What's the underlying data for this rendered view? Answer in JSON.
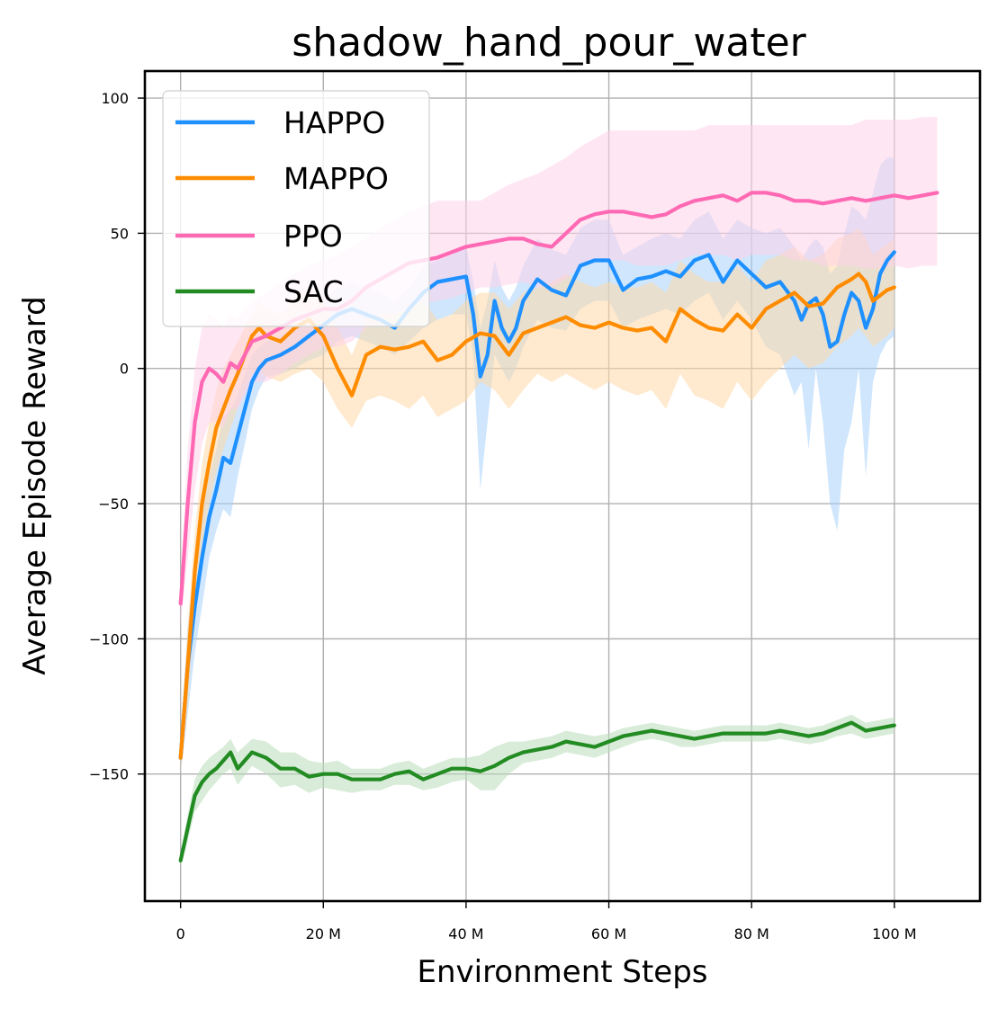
{
  "chart_data": {
    "type": "line",
    "title": "shadow_hand_pour_water",
    "xlabel": "Environment Steps",
    "ylabel": "Average Episode Reward",
    "xlim": [
      -5,
      112
    ],
    "ylim": [
      -197,
      110
    ],
    "x_unit": "M steps",
    "xticks": [
      0,
      20,
      40,
      60,
      80,
      100
    ],
    "xtick_labels": [
      "0",
      "20 M",
      "40 M",
      "60 M",
      "80 M",
      "100 M"
    ],
    "yticks": [
      100,
      50,
      0,
      -50,
      -100,
      -150
    ],
    "ytick_labels": [
      "100",
      "50",
      "0",
      "−50",
      "−100",
      "−150"
    ],
    "grid": true,
    "legend_position": "top-left",
    "series": [
      {
        "name": "HAPPO",
        "color": "#1e90ff",
        "band_color": "#a8d2fb",
        "x": [
          0,
          1,
          2,
          3,
          4,
          5,
          6,
          7,
          8,
          9,
          10,
          11,
          12,
          14,
          16,
          18,
          20,
          22,
          24,
          26,
          28,
          30,
          32,
          34,
          36,
          38,
          40,
          41,
          42,
          43,
          44,
          45,
          46,
          47,
          48,
          50,
          52,
          54,
          56,
          58,
          60,
          62,
          64,
          66,
          68,
          70,
          72,
          74,
          76,
          78,
          80,
          82,
          84,
          86,
          87,
          88,
          89,
          90,
          91,
          92,
          93,
          94,
          95,
          96,
          97,
          98,
          99,
          100
        ],
        "y": [
          -144,
          -110,
          -88,
          -70,
          -55,
          -45,
          -33,
          -35,
          -25,
          -15,
          -5,
          0,
          3,
          5,
          8,
          12,
          16,
          20,
          22,
          20,
          18,
          15,
          22,
          28,
          32,
          33,
          34,
          20,
          -3,
          5,
          25,
          15,
          10,
          15,
          25,
          33,
          29,
          27,
          38,
          40,
          40,
          29,
          33,
          34,
          36,
          34,
          40,
          42,
          32,
          40,
          35,
          30,
          32,
          25,
          18,
          24,
          26,
          20,
          8,
          10,
          20,
          28,
          25,
          15,
          22,
          35,
          40,
          43
        ],
        "lower": [
          -150,
          -128,
          -105,
          -88,
          -70,
          -60,
          -52,
          -55,
          -40,
          -28,
          -15,
          -8,
          -3,
          -2,
          0,
          3,
          5,
          10,
          12,
          10,
          8,
          5,
          10,
          15,
          18,
          20,
          20,
          5,
          -45,
          -20,
          5,
          0,
          -5,
          0,
          8,
          18,
          15,
          14,
          22,
          25,
          25,
          15,
          18,
          20,
          22,
          20,
          25,
          28,
          18,
          25,
          18,
          8,
          5,
          -10,
          -5,
          -30,
          0,
          -20,
          -50,
          -60,
          -30,
          -20,
          0,
          -40,
          -5,
          5,
          10,
          12
        ],
        "upper": [
          -138,
          -95,
          -72,
          -52,
          -40,
          -30,
          -18,
          -15,
          -10,
          -2,
          5,
          8,
          10,
          12,
          15,
          20,
          25,
          30,
          32,
          30,
          28,
          25,
          30,
          38,
          40,
          42,
          45,
          32,
          15,
          25,
          40,
          30,
          25,
          30,
          38,
          48,
          44,
          42,
          52,
          55,
          55,
          42,
          45,
          48,
          50,
          48,
          55,
          58,
          48,
          55,
          52,
          50,
          52,
          45,
          40,
          45,
          48,
          45,
          35,
          38,
          50,
          60,
          58,
          55,
          65,
          75,
          78,
          78
        ]
      },
      {
        "name": "MAPPO",
        "color": "#ff8c00",
        "band_color": "#ffd8a8",
        "x": [
          0,
          1,
          2,
          3,
          4,
          5,
          6,
          7,
          8,
          9,
          10,
          11,
          12,
          14,
          16,
          18,
          20,
          22,
          24,
          26,
          28,
          30,
          32,
          34,
          36,
          38,
          40,
          42,
          44,
          46,
          48,
          50,
          52,
          54,
          56,
          58,
          60,
          62,
          64,
          66,
          68,
          70,
          72,
          74,
          76,
          78,
          80,
          82,
          84,
          86,
          88,
          90,
          92,
          94,
          95,
          96,
          97,
          98,
          99,
          100
        ],
        "y": [
          -144,
          -110,
          -75,
          -50,
          -35,
          -22,
          -15,
          -8,
          -2,
          5,
          12,
          15,
          12,
          10,
          15,
          18,
          12,
          0,
          -10,
          5,
          8,
          7,
          8,
          10,
          3,
          5,
          10,
          13,
          12,
          5,
          13,
          15,
          17,
          19,
          16,
          15,
          17,
          15,
          14,
          15,
          10,
          22,
          18,
          15,
          14,
          20,
          15,
          22,
          25,
          28,
          23,
          24,
          30,
          33,
          35,
          32,
          25,
          27,
          29,
          30
        ],
        "lower": [
          -150,
          -125,
          -90,
          -65,
          -50,
          -38,
          -30,
          -22,
          -15,
          -8,
          -2,
          0,
          -3,
          -5,
          -2,
          0,
          -5,
          -15,
          -22,
          -12,
          -10,
          -12,
          -15,
          -10,
          -18,
          -15,
          -12,
          -5,
          -8,
          -15,
          -8,
          -2,
          -5,
          -2,
          -5,
          -8,
          -5,
          -8,
          -10,
          -8,
          -15,
          -2,
          -10,
          -12,
          -15,
          -5,
          -12,
          -5,
          0,
          5,
          0,
          2,
          8,
          12,
          15,
          12,
          8,
          10,
          12,
          15
        ],
        "upper": [
          -138,
          -95,
          -60,
          -35,
          -20,
          -8,
          0,
          5,
          10,
          15,
          20,
          25,
          22,
          20,
          25,
          30,
          25,
          15,
          5,
          18,
          20,
          20,
          22,
          25,
          18,
          20,
          25,
          28,
          28,
          22,
          28,
          30,
          32,
          35,
          32,
          30,
          32,
          30,
          30,
          32,
          28,
          40,
          35,
          32,
          32,
          38,
          32,
          40,
          42,
          45,
          40,
          42,
          48,
          50,
          52,
          48,
          42,
          44,
          46,
          48
        ]
      },
      {
        "name": "PPO",
        "color": "#ff69b4",
        "band_color": "#ffd1ea",
        "x": [
          0,
          1,
          2,
          3,
          4,
          5,
          6,
          7,
          8,
          9,
          10,
          12,
          14,
          16,
          18,
          20,
          22,
          24,
          26,
          28,
          30,
          32,
          34,
          36,
          38,
          40,
          42,
          44,
          46,
          48,
          50,
          52,
          54,
          56,
          58,
          60,
          62,
          64,
          66,
          68,
          70,
          72,
          74,
          76,
          78,
          80,
          82,
          84,
          86,
          88,
          90,
          92,
          94,
          96,
          98,
          100,
          102,
          104,
          106
        ],
        "y": [
          -87,
          -50,
          -20,
          -5,
          0,
          -2,
          -5,
          2,
          0,
          5,
          10,
          12,
          15,
          18,
          20,
          22,
          22,
          25,
          30,
          33,
          36,
          39,
          40,
          41,
          43,
          45,
          46,
          47,
          48,
          48,
          46,
          45,
          50,
          55,
          57,
          58,
          58,
          57,
          56,
          57,
          60,
          62,
          63,
          64,
          62,
          65,
          65,
          64,
          62,
          62,
          61,
          62,
          63,
          62,
          63,
          64,
          63,
          64,
          65
        ],
        "lower": [
          -95,
          -70,
          -45,
          -28,
          -20,
          -20,
          -22,
          -15,
          -15,
          -10,
          -5,
          -5,
          -2,
          2,
          5,
          8,
          8,
          10,
          15,
          18,
          20,
          22,
          24,
          25,
          26,
          28,
          30,
          30,
          31,
          32,
          30,
          30,
          33,
          38,
          40,
          40,
          40,
          38,
          38,
          38,
          40,
          42,
          42,
          42,
          40,
          42,
          42,
          42,
          40,
          40,
          38,
          38,
          38,
          37,
          37,
          38,
          37,
          38,
          38
        ],
        "upper": [
          -78,
          -30,
          0,
          15,
          20,
          18,
          15,
          20,
          18,
          22,
          25,
          28,
          32,
          35,
          38,
          40,
          42,
          45,
          48,
          52,
          55,
          58,
          60,
          62,
          62,
          62,
          62,
          65,
          68,
          70,
          72,
          75,
          78,
          82,
          85,
          88,
          88,
          88,
          88,
          88,
          88,
          88,
          90,
          90,
          90,
          90,
          90,
          90,
          90,
          90,
          90,
          90,
          90,
          92,
          92,
          92,
          92,
          93,
          93
        ]
      },
      {
        "name": "SAC",
        "color": "#228b22",
        "band_color": "#b9ddb9",
        "x": [
          0,
          1,
          2,
          3,
          4,
          5,
          6,
          7,
          8,
          10,
          12,
          14,
          16,
          18,
          20,
          22,
          24,
          26,
          28,
          30,
          32,
          34,
          36,
          38,
          40,
          42,
          44,
          46,
          48,
          50,
          52,
          54,
          56,
          58,
          60,
          62,
          64,
          66,
          68,
          70,
          72,
          74,
          76,
          78,
          80,
          82,
          84,
          86,
          88,
          90,
          92,
          94,
          96,
          98,
          100
        ],
        "y": [
          -182,
          -170,
          -158,
          -153,
          -150,
          -148,
          -145,
          -142,
          -148,
          -142,
          -144,
          -148,
          -148,
          -151,
          -150,
          -150,
          -152,
          -152,
          -152,
          -150,
          -149,
          -152,
          -150,
          -148,
          -148,
          -149,
          -147,
          -144,
          -142,
          -141,
          -140,
          -138,
          -139,
          -140,
          -138,
          -136,
          -135,
          -134,
          -135,
          -136,
          -137,
          -136,
          -135,
          -135,
          -135,
          -135,
          -134,
          -135,
          -136,
          -135,
          -133,
          -131,
          -134,
          -133,
          -132
        ],
        "lower": [
          -184,
          -175,
          -164,
          -160,
          -156,
          -153,
          -150,
          -148,
          -154,
          -147,
          -150,
          -155,
          -154,
          -157,
          -155,
          -156,
          -157,
          -156,
          -156,
          -154,
          -154,
          -156,
          -155,
          -153,
          -152,
          -156,
          -156,
          -150,
          -146,
          -145,
          -144,
          -142,
          -143,
          -144,
          -142,
          -140,
          -138,
          -137,
          -138,
          -140,
          -140,
          -139,
          -138,
          -138,
          -138,
          -138,
          -137,
          -138,
          -139,
          -138,
          -136,
          -135,
          -137,
          -136,
          -135
        ],
        "upper": [
          -180,
          -165,
          -152,
          -147,
          -144,
          -142,
          -140,
          -137,
          -142,
          -137,
          -138,
          -142,
          -142,
          -145,
          -146,
          -145,
          -148,
          -148,
          -148,
          -146,
          -145,
          -148,
          -146,
          -144,
          -144,
          -143,
          -140,
          -138,
          -138,
          -137,
          -136,
          -134,
          -135,
          -136,
          -135,
          -133,
          -132,
          -131,
          -132,
          -133,
          -134,
          -133,
          -132,
          -132,
          -132,
          -132,
          -131,
          -132,
          -133,
          -132,
          -130,
          -128,
          -131,
          -130,
          -129
        ]
      }
    ]
  }
}
